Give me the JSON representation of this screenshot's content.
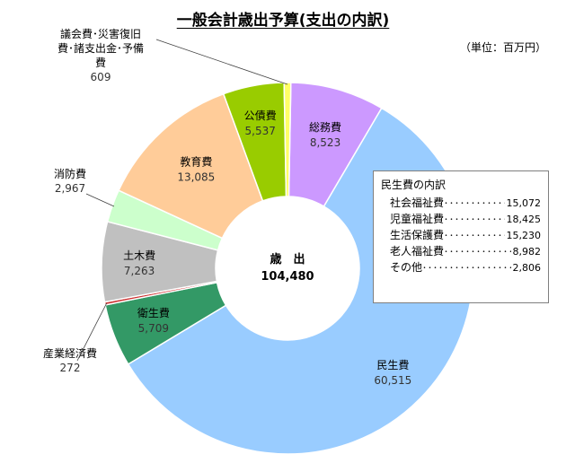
{
  "title": "一般会計歳出予算(支出の内訳)",
  "unit": "（単位：百万円）",
  "center": {
    "line1": "歳　出",
    "line2": "104,480"
  },
  "chart_data": {
    "type": "pie",
    "variant": "donut",
    "title": "一般会計歳出予算(支出の内訳)",
    "total": 104480,
    "slices": [
      {
        "name": "総務費",
        "value": 8523,
        "value_label": "8,523",
        "color": "#CC99FF"
      },
      {
        "name": "民生費",
        "value": 60515,
        "value_label": "60,515",
        "color": "#99CCFF"
      },
      {
        "name": "衛生費",
        "value": 5709,
        "value_label": "5,709",
        "color": "#339966"
      },
      {
        "name": "産業経済費",
        "value": 272,
        "value_label": "272",
        "color": "#CC3333"
      },
      {
        "name": "土木費",
        "value": 7263,
        "value_label": "7,263",
        "color": "#C0C0C0"
      },
      {
        "name": "消防費",
        "value": 2967,
        "value_label": "2,967",
        "color": "#CCFFCC"
      },
      {
        "name": "教育費",
        "value": 13085,
        "value_label": "13,085",
        "color": "#FFCC99"
      },
      {
        "name": "公債費",
        "value": 5537,
        "value_label": "5,537",
        "color": "#99CC00"
      },
      {
        "name": "議会費・災害復旧費・諸支出金・予備費",
        "name_lines": [
          "議会費･災害復旧",
          "費･諸支出金･予備",
          "費"
        ],
        "value": 609,
        "value_label": "609",
        "color": "#FFFF66"
      }
    ]
  },
  "breakdown": {
    "title": "民生費の内訳",
    "items": [
      {
        "name": "社会福祉費",
        "value": "15,072"
      },
      {
        "name": "児童福祉費",
        "value": "18,425"
      },
      {
        "name": "生活保護費",
        "value": "15,230"
      },
      {
        "name": "老人福祉費",
        "value": "8,982"
      },
      {
        "name": "その他",
        "value": "2,806"
      }
    ]
  }
}
